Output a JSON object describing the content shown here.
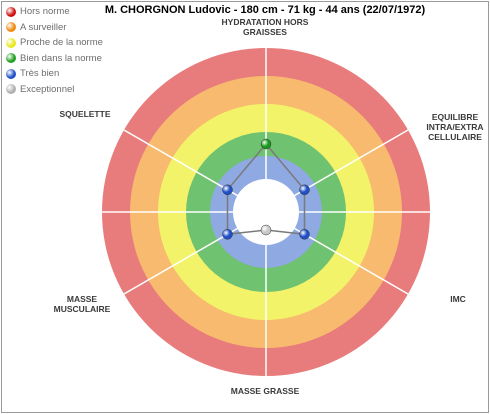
{
  "title": "M. CHORGNON Ludovic - 180 cm - 71 kg - 44 ans (22/07/1972)",
  "legend": [
    {
      "label": "Hors norme",
      "color": "#d01010"
    },
    {
      "label": "A surveiller",
      "color": "#f08a10"
    },
    {
      "label": "Proche de la norme",
      "color": "#e8e820"
    },
    {
      "label": "Bien dans la norme",
      "color": "#20a020"
    },
    {
      "label": "Très bien",
      "color": "#2050c8"
    },
    {
      "label": "Exceptionnel",
      "color": "#b0b0b0"
    }
  ],
  "chart_data": {
    "type": "radar",
    "zones": [
      "Hors norme",
      "A surveiller",
      "Proche de la norme",
      "Bien dans la norme",
      "Très bien",
      "Exceptionnel"
    ],
    "zone_colors": [
      "#e87b7b",
      "#f7ba6f",
      "#f3f36a",
      "#6fc26f",
      "#8fa9e3",
      "#ffffff"
    ],
    "axes": [
      {
        "label": "HYDRATATION HORS GRAISSES",
        "zone": "Bien dans la norme"
      },
      {
        "label": "EQUILIBRE INTRA/EXTRA CELLULAIRE",
        "zone": "Très bien"
      },
      {
        "label": "IMC",
        "zone": "Très bien"
      },
      {
        "label": "MASSE GRASSE",
        "zone": "Exceptionnel"
      },
      {
        "label": "MASSE MUSCULAIRE",
        "zone": "Très bien"
      },
      {
        "label": "SQUELETTE",
        "zone": "Très bien"
      }
    ]
  }
}
